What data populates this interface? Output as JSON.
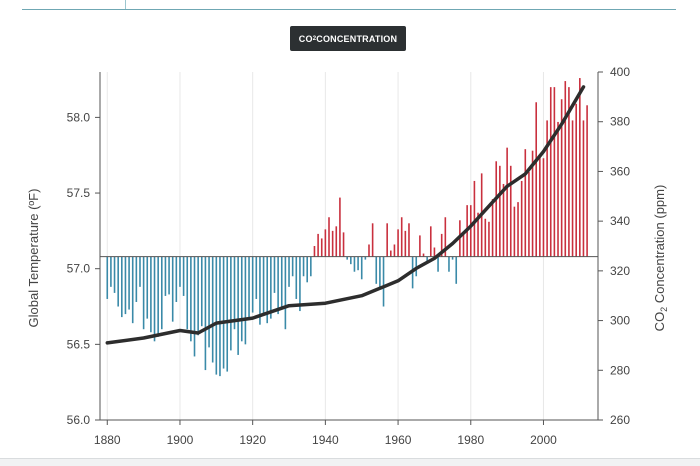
{
  "button": {
    "label_pre": "CO",
    "label_sub": "2",
    "label_post": " CONCENTRATION"
  },
  "chart_data": {
    "type": "bar+line",
    "x_ticks": [
      1880,
      1900,
      1920,
      1940,
      1960,
      1980,
      2000
    ],
    "xlim": [
      1878,
      2015
    ],
    "left_axis": {
      "label": "Global Temperature (ºF)",
      "ticks": [
        "56.0",
        "56.5",
        "57.0",
        "57.5",
        "58.0"
      ],
      "tick_values": [
        56.0,
        56.5,
        57.0,
        57.5,
        58.0
      ],
      "ylim": [
        56.0,
        58.3
      ],
      "baseline": 57.08
    },
    "right_axis": {
      "label_pre": "CO",
      "label_sub": "2",
      "label_post": " Concentration (ppm)",
      "ticks": [
        "260",
        "280",
        "300",
        "320",
        "340",
        "360",
        "380",
        "400"
      ],
      "tick_values": [
        260,
        280,
        300,
        320,
        340,
        360,
        380,
        400
      ],
      "ylim": [
        260,
        400
      ]
    },
    "colors": {
      "above": "#c9303e",
      "below": "#3a8aa8",
      "line": "#2d2d2d",
      "axis": "#555555",
      "grid": "#e8e8e8"
    },
    "grid": true,
    "bars": {
      "x": [
        1880,
        1881,
        1882,
        1883,
        1884,
        1885,
        1886,
        1887,
        1888,
        1889,
        1890,
        1891,
        1892,
        1893,
        1894,
        1895,
        1896,
        1897,
        1898,
        1899,
        1900,
        1901,
        1902,
        1903,
        1904,
        1905,
        1906,
        1907,
        1908,
        1909,
        1910,
        1911,
        1912,
        1913,
        1914,
        1915,
        1916,
        1917,
        1918,
        1919,
        1920,
        1921,
        1922,
        1923,
        1924,
        1925,
        1926,
        1927,
        1928,
        1929,
        1930,
        1931,
        1932,
        1933,
        1934,
        1935,
        1936,
        1937,
        1938,
        1939,
        1940,
        1941,
        1942,
        1943,
        1944,
        1945,
        1946,
        1947,
        1948,
        1949,
        1950,
        1951,
        1952,
        1953,
        1954,
        1955,
        1956,
        1957,
        1958,
        1959,
        1960,
        1961,
        1962,
        1963,
        1964,
        1965,
        1966,
        1967,
        1968,
        1969,
        1970,
        1971,
        1972,
        1973,
        1974,
        1975,
        1976,
        1977,
        1978,
        1979,
        1980,
        1981,
        1982,
        1983,
        1984,
        1985,
        1986,
        1987,
        1988,
        1989,
        1990,
        1991,
        1992,
        1993,
        1994,
        1995,
        1996,
        1997,
        1998,
        1999,
        2000,
        2001,
        2002,
        2003,
        2004,
        2005,
        2006,
        2007,
        2008,
        2009,
        2010,
        2011,
        2012
      ],
      "temperature": [
        56.8,
        56.88,
        56.84,
        56.75,
        56.68,
        56.7,
        56.73,
        56.64,
        56.78,
        56.88,
        56.6,
        56.67,
        56.58,
        56.52,
        56.55,
        56.6,
        56.82,
        56.83,
        56.65,
        56.78,
        56.88,
        56.82,
        56.6,
        56.52,
        56.42,
        56.56,
        56.62,
        56.33,
        56.48,
        56.38,
        56.3,
        56.29,
        56.34,
        56.32,
        56.46,
        56.6,
        56.43,
        56.52,
        56.5,
        56.68,
        56.71,
        56.8,
        56.63,
        56.69,
        56.64,
        56.67,
        56.84,
        56.7,
        56.74,
        56.6,
        56.88,
        56.95,
        56.8,
        56.72,
        56.95,
        56.91,
        56.95,
        57.15,
        57.23,
        57.2,
        57.26,
        57.34,
        57.25,
        57.28,
        57.47,
        57.24,
        57.06,
        57.03,
        56.98,
        56.99,
        56.93,
        57.06,
        57.16,
        57.3,
        56.9,
        56.87,
        56.75,
        57.3,
        57.12,
        57.16,
        57.26,
        57.34,
        57.25,
        57.3,
        56.87,
        56.95,
        57.22,
        57.1,
        57.05,
        57.28,
        57.14,
        56.98,
        57.23,
        57.34,
        56.98,
        57.06,
        56.9,
        57.32,
        57.23,
        57.42,
        57.42,
        57.58,
        57.37,
        57.63,
        57.33,
        57.31,
        57.46,
        57.71,
        57.68,
        57.56,
        57.8,
        57.68,
        57.41,
        57.44,
        57.58,
        57.79,
        57.64,
        57.78,
        58.1,
        57.75,
        57.73,
        57.98,
        58.2,
        58.2,
        57.97,
        58.12,
        58.24,
        58.2,
        57.98,
        58.09,
        58.26,
        57.98,
        58.08
      ]
    },
    "co2_line": {
      "x": [
        1880,
        1890,
        1900,
        1905,
        1910,
        1920,
        1930,
        1940,
        1950,
        1955,
        1960,
        1965,
        1970,
        1975,
        1980,
        1985,
        1990,
        1995,
        2000,
        2005,
        2011
      ],
      "ppm": [
        291,
        293,
        296,
        295,
        299,
        301,
        306,
        307,
        310,
        313,
        316,
        321,
        325,
        331,
        338,
        346,
        354,
        359,
        368,
        379,
        394
      ]
    }
  }
}
